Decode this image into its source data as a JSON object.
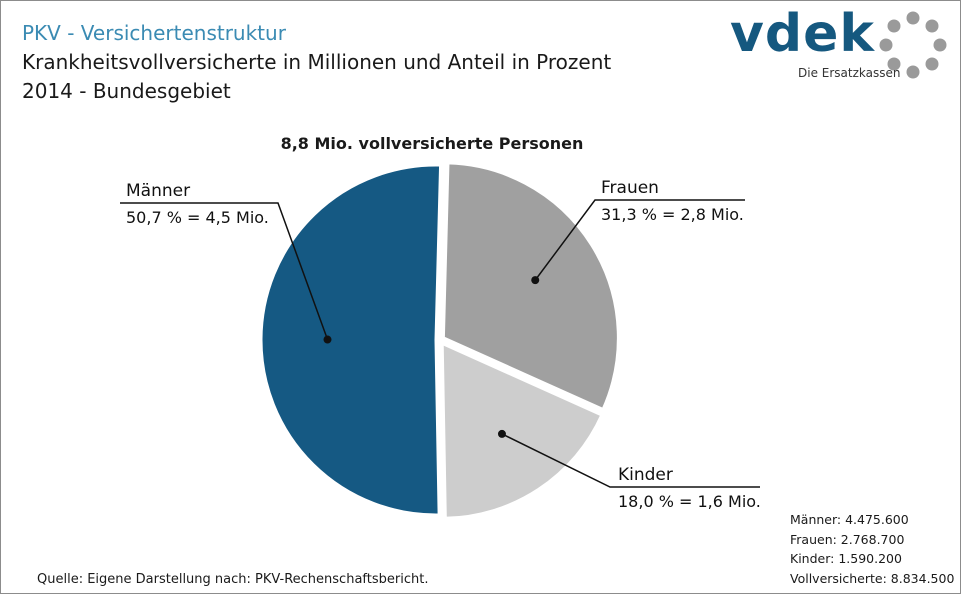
{
  "header": {
    "title": "PKV - Versichertenstruktur",
    "subtitle_line1": "Krankheitsvollversicherte in Millionen und Anteil in Prozent",
    "subtitle_line2": "2014 - Bundesgebiet"
  },
  "logo": {
    "wordmark": "vdek",
    "tagline": "Die Ersatzkassen"
  },
  "chart_data": {
    "type": "pie",
    "title": "8,8 Mio. vollversicherte Personen",
    "slices": [
      {
        "name": "Frauen",
        "label": "31,3 % = 2,8 Mio.",
        "percent": 31.3,
        "value_mio": 2.8,
        "color": "#a0a0a0"
      },
      {
        "name": "Kinder",
        "label": "18,0 % = 1,6 Mio.",
        "percent": 18.0,
        "value_mio": 1.6,
        "color": "#cdcdcd"
      },
      {
        "name": "Männer",
        "label": "50,7 % = 4,5 Mio.",
        "percent": 50.7,
        "value_mio": 4.5,
        "color": "#155983"
      }
    ]
  },
  "totals": [
    {
      "text": "Männer: 4.475.600"
    },
    {
      "text": "Frauen: 2.768.700"
    },
    {
      "text": "Kinder: 1.590.200"
    },
    {
      "text": "Vollversicherte:  8.834.500"
    }
  ],
  "source": "Quelle: Eigene Darstellung nach: PKV-Rechenschaftsbericht."
}
